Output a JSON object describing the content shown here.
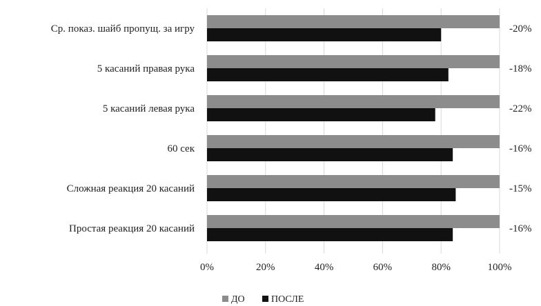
{
  "chart_data": {
    "type": "bar",
    "orientation": "horizontal",
    "categories": [
      "Ср. показ. шайб пропущ. за игру",
      "5 касаний правая рука",
      "5 касаний левая рука",
      "60 сек",
      "Сложная реакция 20 касаний",
      "Простая реакция 20 касаний"
    ],
    "series": [
      {
        "name": "ДО",
        "color": "#8c8c8c",
        "values": [
          100,
          100,
          100,
          100,
          100,
          100
        ]
      },
      {
        "name": "ПОСЛЕ",
        "color": "#111111",
        "values": [
          80,
          82.5,
          78,
          84,
          85,
          84
        ]
      }
    ],
    "change_labels": [
      "-20%",
      "-18%",
      "-22%",
      "-16%",
      "-15%",
      "-16%"
    ],
    "x_ticks": [
      "0%",
      "20%",
      "40%",
      "60%",
      "80%",
      "100%"
    ],
    "xlim": [
      0,
      100
    ],
    "grid": true,
    "legend_position": "bottom-center"
  }
}
